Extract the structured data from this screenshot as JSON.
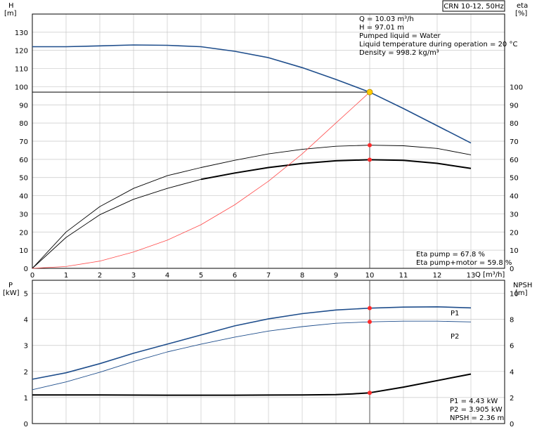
{
  "title": "CRN 10-12, 50Hz",
  "colors": {
    "head": "#1f4e8c",
    "eta": "#000000",
    "npsh": "#000000",
    "eta_ref": "#ff4a4a",
    "p1": "#1f4e8c",
    "p2": "#1f4e8c",
    "point": "#ff2a2a",
    "op": "#ffcc00",
    "grid": "#c8c8c8"
  },
  "chart_data": [
    {
      "type": "line",
      "axes": {
        "x": {
          "label": "Q [m³/h]",
          "range": [
            0,
            14
          ],
          "ticks": [
            0,
            1,
            2,
            3,
            4,
            5,
            6,
            7,
            8,
            9,
            10,
            11,
            12,
            13
          ]
        },
        "y_left": {
          "label_top": "H",
          "label_unit": "[m]",
          "range": [
            0,
            140
          ],
          "ticks": [
            0,
            10,
            20,
            30,
            40,
            50,
            60,
            70,
            80,
            90,
            100,
            110,
            120,
            130
          ]
        },
        "y_right": {
          "label_top": "eta",
          "label_unit": "[%]",
          "range": [
            0,
            140
          ],
          "ticks": [
            0,
            10,
            20,
            30,
            40,
            50,
            60,
            70,
            80,
            90,
            100
          ]
        }
      },
      "series": [
        {
          "key": "head",
          "axis": "left",
          "width": 1.6,
          "x": [
            0,
            1,
            2,
            3,
            4,
            5,
            6,
            7,
            8,
            9,
            10,
            11,
            12,
            13
          ],
          "y": [
            122,
            122,
            122.5,
            123,
            122.8,
            122,
            119.5,
            116,
            110.5,
            104,
            97,
            88,
            78.5,
            69
          ]
        },
        {
          "key": "eta_outer",
          "axis": "right",
          "width": 0.9,
          "x": [
            0,
            1,
            2,
            3,
            4,
            5,
            6,
            7,
            8,
            9,
            10,
            11,
            12,
            13
          ],
          "y": [
            0,
            20,
            34,
            44,
            51,
            55.5,
            59.5,
            63,
            65.5,
            67.2,
            67.8,
            67.5,
            66,
            62.5
          ]
        },
        {
          "key": "eta_inner",
          "axis": "right",
          "width": 0.9,
          "x": [
            0,
            1,
            2,
            3,
            4,
            5
          ],
          "y": [
            0,
            17,
            29.5,
            38,
            44,
            49
          ]
        },
        {
          "key": "eta_inner_bold",
          "axis": "right",
          "width": 2,
          "x": [
            5,
            6,
            7,
            8,
            9,
            10,
            11,
            12,
            13
          ],
          "y": [
            49,
            52.5,
            55.5,
            57.7,
            59.2,
            59.8,
            59.5,
            57.8,
            55
          ]
        },
        {
          "key": "eta_ref",
          "axis": "left",
          "width": 0.8,
          "x": [
            0,
            1,
            2,
            3,
            4,
            5,
            6,
            7,
            8,
            9,
            10
          ],
          "y": [
            0,
            1,
            4,
            9,
            15.5,
            24,
            35,
            48,
            63,
            80,
            97
          ]
        }
      ],
      "markers": [
        {
          "x": 10,
          "y": 67.8,
          "kind": "point"
        },
        {
          "x": 10,
          "y": 59.8,
          "kind": "point"
        },
        {
          "x": 10,
          "y": 97.01,
          "kind": "op"
        }
      ],
      "operating_point": {
        "x": 10.03,
        "y": 97.01
      },
      "info_lines": [
        "Q = 10.03 m³/h",
        "H = 97.01 m",
        "Pumped liquid = Water",
        "Liquid temperature during operation = 20 °C",
        "Density = 998.2 kg/m³"
      ],
      "eta_lines": [
        "Eta pump = 67.8 %",
        "Eta pump+motor = 59.8 %"
      ]
    },
    {
      "type": "line",
      "axes": {
        "x": {
          "range": [
            0,
            14
          ],
          "ticks": [
            0,
            1,
            2,
            3,
            4,
            5,
            6,
            7,
            8,
            9,
            10,
            11,
            12,
            13
          ]
        },
        "y_left": {
          "label_top": "P",
          "label_unit": "[kW]",
          "range": [
            0,
            5.5
          ],
          "ticks": [
            0,
            1,
            2,
            3,
            4,
            5
          ]
        },
        "y_right": {
          "label_top": "NPSH",
          "label_unit": "[m]",
          "range": [
            0,
            11
          ],
          "ticks": [
            0,
            2,
            4,
            6,
            8,
            10
          ]
        }
      },
      "series": [
        {
          "key": "p1",
          "name": "P1",
          "axis": "left",
          "width": 1.6,
          "x": [
            0,
            1,
            2,
            3,
            4,
            5,
            6,
            7,
            8,
            9,
            10,
            11,
            12,
            13
          ],
          "y": [
            1.7,
            1.95,
            2.3,
            2.7,
            3.05,
            3.4,
            3.75,
            4.02,
            4.22,
            4.36,
            4.43,
            4.47,
            4.48,
            4.44
          ]
        },
        {
          "key": "p2",
          "name": "P2",
          "axis": "left",
          "width": 0.9,
          "x": [
            0,
            1,
            2,
            3,
            4,
            5,
            6,
            7,
            8,
            9,
            10,
            11,
            12,
            13
          ],
          "y": [
            1.3,
            1.6,
            1.97,
            2.38,
            2.75,
            3.05,
            3.32,
            3.55,
            3.72,
            3.85,
            3.905,
            3.93,
            3.93,
            3.9
          ]
        },
        {
          "key": "npsh",
          "axis": "right",
          "width": 2,
          "x": [
            0,
            2,
            4,
            6,
            8,
            9,
            9.5,
            10,
            11,
            12,
            13
          ],
          "y": [
            2.2,
            2.2,
            2.18,
            2.18,
            2.2,
            2.22,
            2.28,
            2.36,
            2.8,
            3.3,
            3.8
          ]
        }
      ],
      "markers": [
        {
          "x": 10,
          "y": 4.43,
          "kind": "point",
          "axis": "left"
        },
        {
          "x": 10,
          "y": 3.905,
          "kind": "point",
          "axis": "left"
        },
        {
          "x": 10,
          "y": 2.36,
          "kind": "point",
          "axis": "right"
        }
      ],
      "info_lines": [
        "P1 = 4.43 kW",
        "P2 = 3.905 kW",
        "NPSH = 2.36 m"
      ]
    }
  ]
}
